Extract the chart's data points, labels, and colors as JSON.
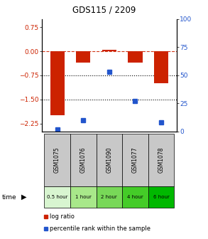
{
  "title": "GDS115 / 2209",
  "samples": [
    "GSM1075",
    "GSM1076",
    "GSM1090",
    "GSM1077",
    "GSM1078"
  ],
  "time_labels": [
    "0.5 hour",
    "1 hour",
    "2 hour",
    "4 hour",
    "6 hour"
  ],
  "log_ratios": [
    -2.0,
    -0.35,
    0.05,
    -0.35,
    -1.0
  ],
  "percentile_ranks": [
    2,
    10,
    53,
    27,
    8
  ],
  "bar_color": "#cc2200",
  "dot_color": "#2255cc",
  "ylim_left": [
    -2.5,
    1.0
  ],
  "ylim_right": [
    0,
    100
  ],
  "yticks_left": [
    0.75,
    0.0,
    -0.75,
    -1.5,
    -2.25
  ],
  "yticks_right": [
    100,
    75,
    50,
    25,
    0
  ],
  "legend_red": "log ratio",
  "legend_blue": "percentile rank within the sample",
  "sample_bg": "#c8c8c8",
  "time_colors": [
    "#d8f5d0",
    "#a8e88a",
    "#78d858",
    "#44cc28",
    "#00b800"
  ]
}
